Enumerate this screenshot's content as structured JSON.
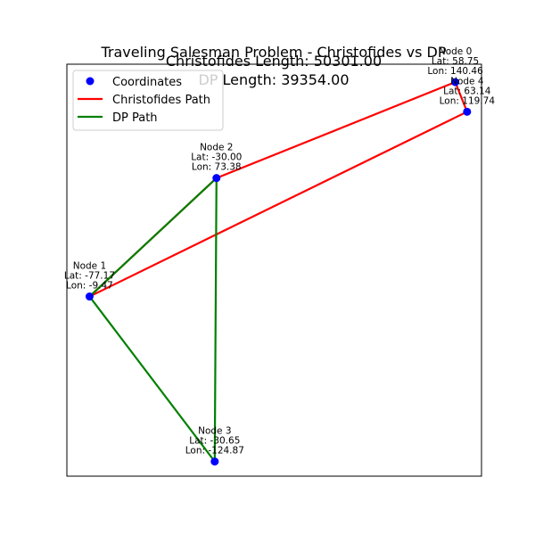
{
  "chart_data": {
    "type": "scatter",
    "title_lines": [
      "Traveling Salesman Problem - Christofides vs DP",
      "Christofides Length: 50301.00",
      "DP Length: 39354.00"
    ],
    "xlim": [
      -85.6,
      68.5
    ],
    "ylim": [
      -135.1,
      153.0
    ],
    "grid": false,
    "legend_position": "top-left",
    "nodes": [
      {
        "name": "Node 0",
        "lat": 58.75,
        "lon": 140.46,
        "lat_label": "Lat: 58.75",
        "lon_label": "Lon: 140.46"
      },
      {
        "name": "Node 1",
        "lat": -77.17,
        "lon": -9.47,
        "lat_label": "Lat: -77.17",
        "lon_label": "Lon: -9.47"
      },
      {
        "name": "Node 2",
        "lat": -30.0,
        "lon": 73.38,
        "lat_label": "Lat: -30.00",
        "lon_label": "Lon: 73.38"
      },
      {
        "name": "Node 3",
        "lat": -30.65,
        "lon": -124.87,
        "lat_label": "Lat: -30.65",
        "lon_label": "Lon: -124.87"
      },
      {
        "name": "Node 4",
        "lat": 63.14,
        "lon": 119.74,
        "lat_label": "Lat: 63.14",
        "lon_label": "Lon: 119.74"
      }
    ],
    "series": [
      {
        "name": "Coordinates",
        "kind": "points",
        "color": "#0000ff"
      },
      {
        "name": "Christofides Path",
        "kind": "path",
        "color": "#ff0000",
        "order": [
          0,
          4,
          1,
          2,
          0
        ]
      },
      {
        "name": "DP Path",
        "kind": "path",
        "color": "#008000",
        "order": [
          1,
          2,
          3,
          1
        ]
      }
    ]
  }
}
